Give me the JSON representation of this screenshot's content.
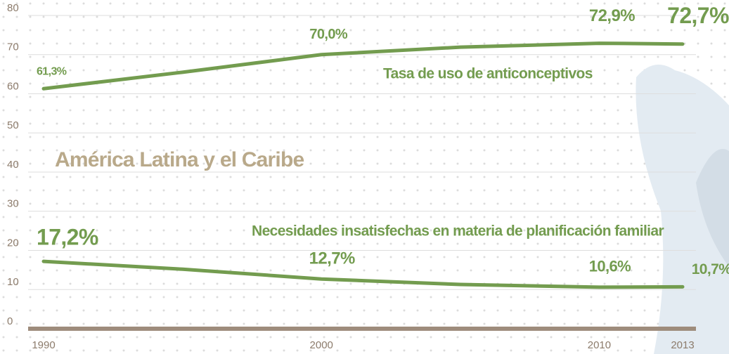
{
  "chart_data": {
    "type": "line",
    "annotation": "América Latina y el Caribe",
    "x": [
      1990,
      1995,
      2000,
      2005,
      2010,
      2013
    ],
    "series": [
      {
        "name": "Tasa de uso de anticonceptivos",
        "color": "#739c4f",
        "values": [
          61.3,
          65.5,
          70.0,
          71.9,
          72.9,
          72.7
        ],
        "value_labels": [
          "61,3%",
          null,
          "70,0%",
          null,
          "72,9%",
          "72,7%"
        ]
      },
      {
        "name": "Necesidades insatisfechas en materia de planificación familiar",
        "color": "#739c4f",
        "values": [
          17.2,
          15.2,
          12.7,
          11.3,
          10.6,
          10.7
        ],
        "value_labels": [
          "17,2%",
          null,
          "12,7%",
          null,
          "10,6%",
          "10,7%"
        ]
      }
    ],
    "xlim": [
      1990,
      2013
    ],
    "xticks": [
      1990,
      2000,
      2010,
      2013
    ],
    "ylim": [
      0,
      80
    ],
    "yticks": [
      0,
      10,
      20,
      30,
      40,
      50,
      60,
      70,
      80
    ],
    "grid": true
  }
}
